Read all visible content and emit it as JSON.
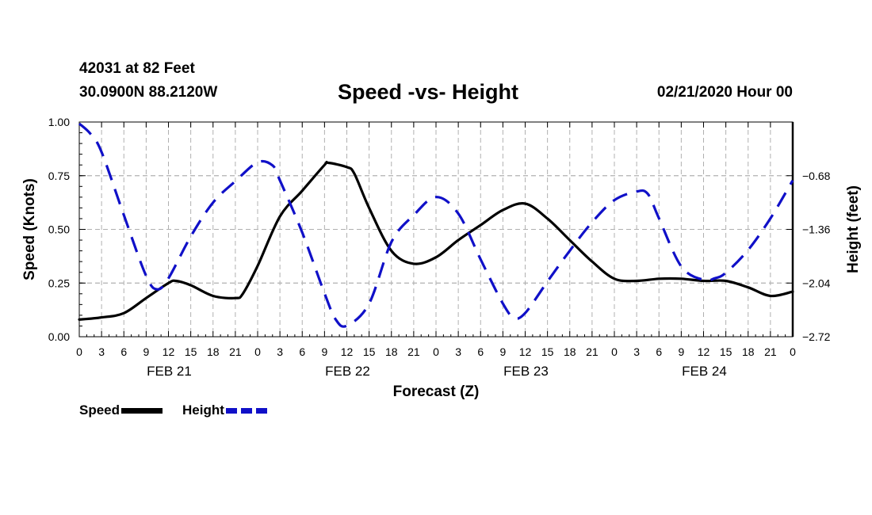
{
  "header": {
    "station": "42031 at 82 Feet",
    "coords": "30.0900N 88.2120W",
    "title": "Speed -vs- Height",
    "datetime": "02/21/2020 Hour 00"
  },
  "legend": {
    "speed_label": "Speed",
    "height_label": "Height"
  },
  "colors": {
    "speed": "#000000",
    "height": "#1010c8",
    "grid": "#b0b0b0"
  },
  "chart_data": {
    "type": "line",
    "title": "Speed -vs- Height",
    "xlabel": "Forecast (Z)",
    "ylabel": "Speed (Knots)",
    "y2label": "Height (feet)",
    "xlim": [
      0,
      96
    ],
    "ylim": [
      0,
      1
    ],
    "y2lim": [
      -2.72,
      0.0
    ],
    "x_ticks": [
      0,
      3,
      6,
      9,
      12,
      15,
      18,
      21,
      24,
      27,
      30,
      33,
      36,
      39,
      42,
      45,
      48,
      51,
      54,
      57,
      60,
      63,
      66,
      69,
      72,
      75,
      78,
      81,
      84,
      87,
      90,
      93,
      96
    ],
    "x_tick_labels": [
      "0",
      "3",
      "6",
      "9",
      "12",
      "15",
      "18",
      "21",
      "0",
      "3",
      "6",
      "9",
      "12",
      "15",
      "18",
      "21",
      "0",
      "3",
      "6",
      "9",
      "12",
      "15",
      "18",
      "21",
      "0",
      "3",
      "6",
      "9",
      "12",
      "15",
      "18",
      "21",
      "0"
    ],
    "day_labels": [
      {
        "x": 12,
        "label": "FEB 21"
      },
      {
        "x": 36,
        "label": "FEB 22"
      },
      {
        "x": 60,
        "label": "FEB 23"
      },
      {
        "x": 84,
        "label": "FEB 24"
      }
    ],
    "y_ticks": [
      0,
      0.25,
      0.5,
      0.75,
      1.0
    ],
    "y_tick_labels": [
      "0.00",
      "0.25",
      "0.50",
      "0.75",
      "1.00"
    ],
    "y2_ticks": [
      -2.72,
      -2.04,
      -1.36,
      -0.68
    ],
    "y2_tick_labels": [
      "−2.72",
      "−2.04",
      "−1.36",
      "−0.68"
    ],
    "grid": true,
    "series": [
      {
        "name": "Speed",
        "axis": "left",
        "style": "solid",
        "x": [
          0,
          3,
          6,
          9,
          12,
          13,
          15,
          18,
          21,
          22,
          24,
          27,
          30,
          33,
          33.5,
          36,
          37,
          39,
          42,
          45,
          48,
          51,
          54,
          57,
          60,
          63,
          66,
          69,
          72,
          75,
          78,
          81,
          84,
          87,
          90,
          93,
          96
        ],
        "y": [
          0.08,
          0.09,
          0.11,
          0.18,
          0.25,
          0.26,
          0.24,
          0.19,
          0.18,
          0.2,
          0.33,
          0.56,
          0.68,
          0.8,
          0.81,
          0.79,
          0.76,
          0.6,
          0.4,
          0.34,
          0.37,
          0.45,
          0.52,
          0.59,
          0.62,
          0.55,
          0.45,
          0.35,
          0.27,
          0.26,
          0.27,
          0.27,
          0.26,
          0.26,
          0.23,
          0.19,
          0.21
        ]
      },
      {
        "name": "Height",
        "axis": "right",
        "style": "dashed",
        "x": [
          0,
          1.5,
          3,
          6,
          9,
          10.5,
          12,
          15,
          18,
          21,
          24,
          26,
          27,
          30,
          33,
          34.5,
          36,
          39,
          42,
          45,
          48,
          51,
          54,
          57,
          58.5,
          60,
          63,
          66,
          69,
          72,
          75,
          76.5,
          78,
          81,
          84,
          85.5,
          87,
          90,
          93,
          96
        ],
        "y": [
          -0.02,
          -0.15,
          -0.38,
          -1.18,
          -1.95,
          -2.12,
          -1.98,
          -1.45,
          -1.02,
          -0.75,
          -0.51,
          -0.55,
          -0.74,
          -1.4,
          -2.17,
          -2.5,
          -2.58,
          -2.3,
          -1.52,
          -1.18,
          -0.95,
          -1.16,
          -1.74,
          -2.3,
          -2.48,
          -2.42,
          -2.02,
          -1.63,
          -1.27,
          -0.99,
          -0.88,
          -0.91,
          -1.22,
          -1.83,
          -2.0,
          -1.98,
          -1.91,
          -1.62,
          -1.22,
          -0.74
        ]
      }
    ]
  }
}
